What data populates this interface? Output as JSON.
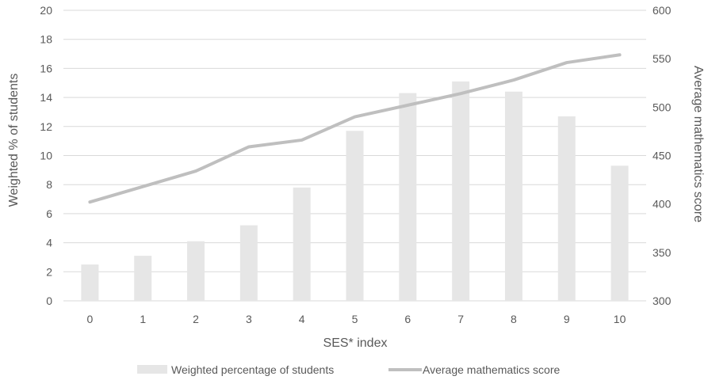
{
  "chart_data": {
    "type": "bar+line",
    "categories": [
      "0",
      "1",
      "2",
      "3",
      "4",
      "5",
      "6",
      "7",
      "8",
      "9",
      "10"
    ],
    "series": [
      {
        "name": "Weighted percentage of students",
        "type": "bar",
        "axis": "left",
        "values": [
          2.5,
          3.1,
          4.1,
          5.2,
          7.8,
          11.7,
          14.3,
          15.1,
          14.4,
          12.7,
          9.3
        ]
      },
      {
        "name": "Average mathematics score",
        "type": "line",
        "axis": "right",
        "values": [
          402,
          418,
          434,
          459,
          466,
          490,
          502,
          514,
          528,
          546,
          554
        ]
      }
    ],
    "xlabel": "SES* index",
    "ylabel": "Weighted % of students",
    "y2label": "Average mathematics score",
    "ylim": [
      0,
      20
    ],
    "y2lim": [
      300,
      600
    ],
    "yticks": [
      "0",
      "2",
      "4",
      "6",
      "8",
      "10",
      "12",
      "14",
      "16",
      "18",
      "20"
    ],
    "y2ticks": [
      "300",
      "350",
      "400",
      "450",
      "500",
      "550",
      "600"
    ],
    "grid": true,
    "legend": "bottom",
    "colors": {
      "bar": "#e6e6e6",
      "line": "#bfbfbf",
      "grid": "#d9d9d9",
      "text": "#595959"
    }
  }
}
